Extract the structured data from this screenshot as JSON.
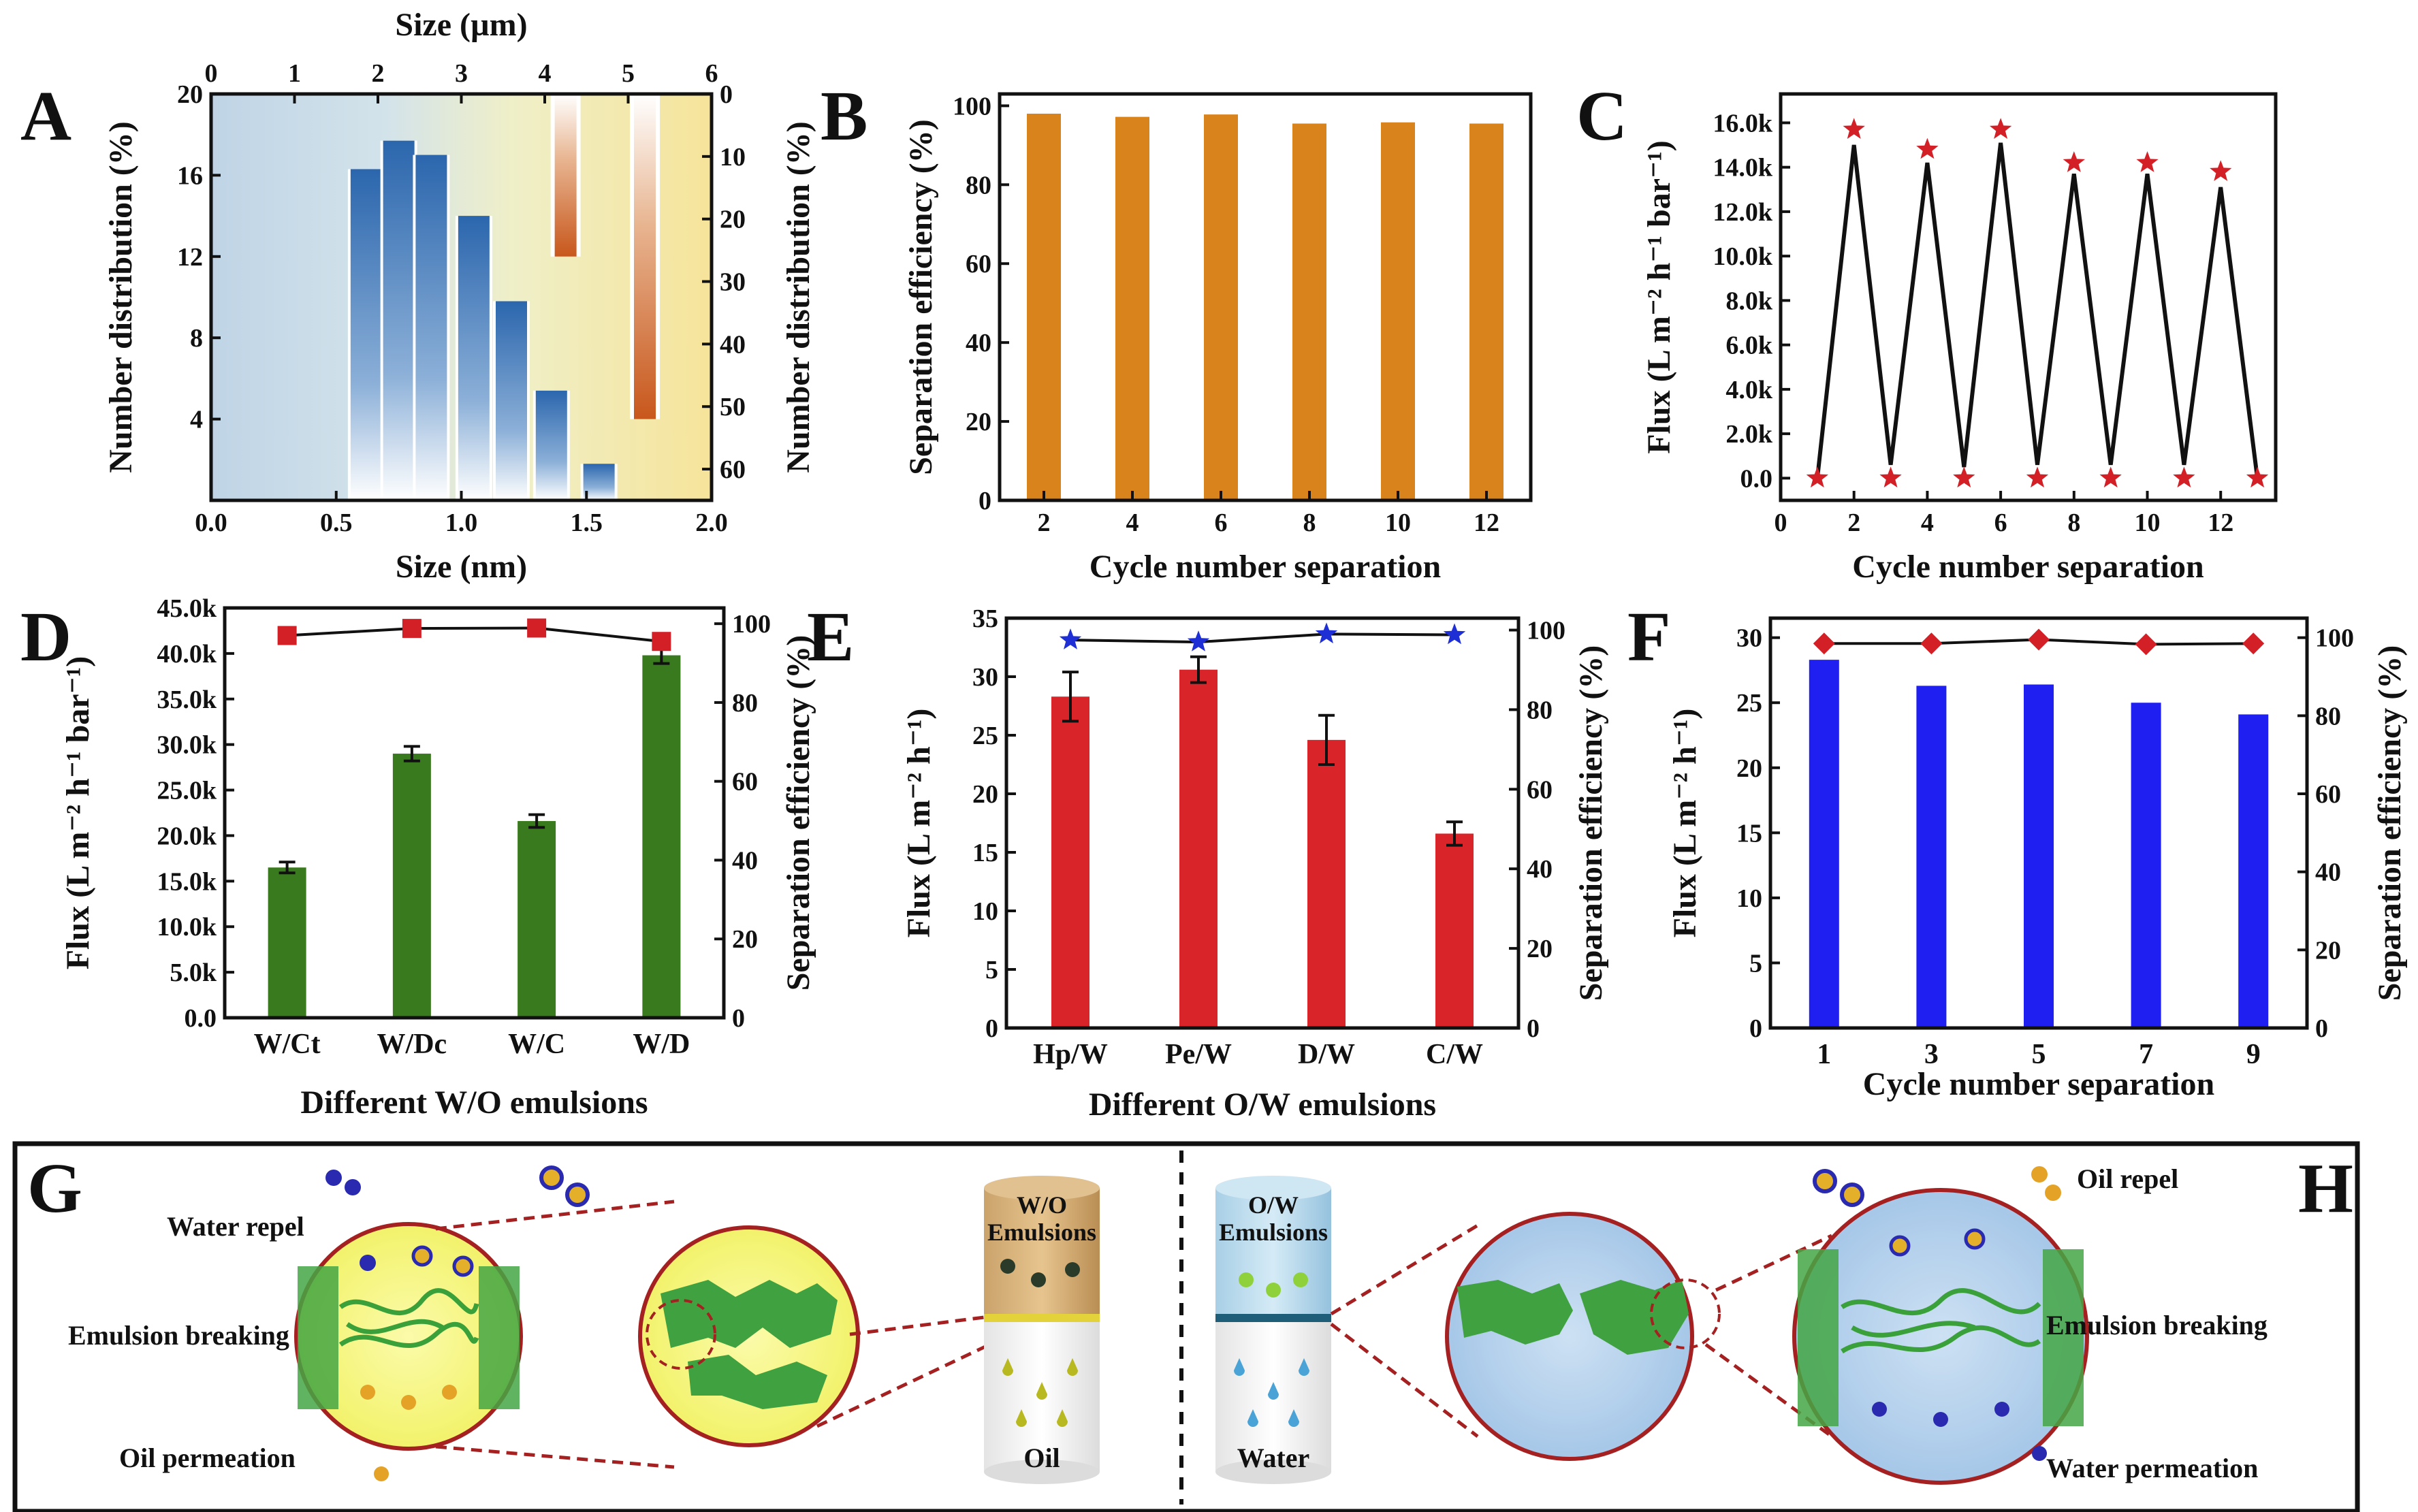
{
  "panel_letters": [
    "A",
    "B",
    "C",
    "D",
    "E",
    "F",
    "G",
    "H"
  ],
  "chart_data": [
    {
      "id": "A",
      "type": "bar",
      "xlabel": "Size (nm)",
      "x2label": "Size (µm)",
      "ylabel": "Number distribution (%)",
      "y2label": "Number distribution (%)",
      "xlim": [
        0,
        2
      ],
      "x2lim": [
        0,
        6
      ],
      "ylim": [
        0,
        20
      ],
      "y2lim": [
        0,
        65
      ],
      "y2_inverted": true,
      "xticks": [
        "0.0",
        "0.5",
        "1.0",
        "1.5",
        "2.0"
      ],
      "x2ticks": [
        "0",
        "1",
        "2",
        "3",
        "4",
        "5",
        "6"
      ],
      "yticks": [
        "4",
        "8",
        "12",
        "16",
        "20"
      ],
      "y2ticks": [
        "0",
        "10",
        "20",
        "30",
        "40",
        "50",
        "60"
      ],
      "series": [
        {
          "axis": "primary",
          "color": "#2f6db5",
          "x": [
            0.62,
            0.75,
            0.88,
            1.05,
            1.2,
            1.36,
            1.55
          ],
          "values": [
            16.3,
            17.7,
            17.0,
            14.0,
            9.8,
            5.4,
            1.8
          ]
        },
        {
          "axis": "secondary",
          "color": "#c8571c",
          "x": [
            4.25,
            5.2
          ],
          "values": [
            26,
            52
          ]
        }
      ]
    },
    {
      "id": "B",
      "type": "bar",
      "xlabel": "Cycle number separation",
      "ylabel": "Separation efficiency (%)",
      "ylim": [
        0,
        103
      ],
      "yticks": [
        "0",
        "20",
        "40",
        "60",
        "80",
        "100"
      ],
      "color": "#d9831d",
      "categories": [
        "2",
        "4",
        "6",
        "8",
        "10",
        "12"
      ],
      "values": [
        98.0,
        97.2,
        97.8,
        95.5,
        95.8,
        95.5
      ]
    },
    {
      "id": "C",
      "type": "line",
      "xlabel": "Cycle number separation",
      "ylabel": "Flux (L m⁻² h⁻¹ bar⁻¹)",
      "xlim": [
        0,
        13.5
      ],
      "ylim": [
        -1000,
        17300
      ],
      "xticks": [
        "0",
        "2",
        "4",
        "6",
        "8",
        "10",
        "12"
      ],
      "yticks": [
        "0.0",
        "2.0k",
        "4.0k",
        "6.0k",
        "8.0k",
        "10.0k",
        "12.0k",
        "14.0k",
        "16.0k"
      ],
      "marker_color": "#d32027",
      "x": [
        1,
        2,
        3,
        4,
        5,
        6,
        7,
        8,
        9,
        10,
        11,
        12,
        13
      ],
      "values": [
        0,
        15000,
        600,
        14200,
        500,
        15100,
        600,
        13700,
        600,
        13700,
        600,
        13100,
        0
      ],
      "star_values": [
        0,
        15700,
        0,
        14800,
        0,
        15700,
        0,
        14200,
        0,
        14200,
        0,
        13800,
        0
      ]
    },
    {
      "id": "D",
      "type": "bar",
      "xlabel": "Different W/O emulsions",
      "ylabel": "Flux (L m⁻² h⁻¹ bar⁻¹)",
      "y2label": "Separation efficiency (%)",
      "ylim": [
        0,
        45000
      ],
      "y2lim": [
        0,
        104
      ],
      "yticks": [
        "0.0",
        "5.0k",
        "10.0k",
        "15.0k",
        "20.0k",
        "25.0k",
        "30.0k",
        "35.0k",
        "40.0k",
        "45.0k"
      ],
      "y2ticks": [
        "0",
        "20",
        "40",
        "60",
        "80",
        "100"
      ],
      "categories": [
        "W/Ct",
        "W/Dc",
        "W/C",
        "W/D"
      ],
      "bar_color": "#3a7a1e",
      "line_color": "#d32027",
      "values": [
        16500,
        29000,
        21600,
        39800
      ],
      "errors": [
        600,
        800,
        700,
        900
      ],
      "efficiency": [
        97.0,
        98.8,
        98.9,
        95.5
      ]
    },
    {
      "id": "E",
      "type": "bar",
      "xlabel": "Different O/W emulsions",
      "ylabel": "Flux (L m⁻² h⁻¹)",
      "y2label": "Separation efficiency (%)",
      "ylim": [
        0,
        35
      ],
      "y2lim": [
        0,
        103
      ],
      "yticks": [
        "0",
        "5",
        "10",
        "15",
        "20",
        "25",
        "30",
        "35"
      ],
      "y2ticks": [
        "0",
        "20",
        "40",
        "60",
        "80",
        "100"
      ],
      "categories": [
        "Hp/W",
        "Pe/W",
        "D/W",
        "C/W"
      ],
      "bar_color": "#d9252a",
      "marker_color": "#1f2fd6",
      "values": [
        28.3,
        30.6,
        24.6,
        16.6
      ],
      "errors": [
        2.1,
        1.1,
        2.1,
        1.0
      ],
      "efficiency": [
        97.5,
        97.0,
        99.0,
        98.8
      ]
    },
    {
      "id": "F",
      "type": "bar",
      "xlabel": "Cycle number separation",
      "ylabel": "Flux (L m⁻² h⁻¹)",
      "y2label": "Separation efficiency (%)",
      "ylim": [
        0,
        31.5
      ],
      "y2lim": [
        0,
        105
      ],
      "yticks": [
        "0",
        "5",
        "10",
        "15",
        "20",
        "25",
        "30"
      ],
      "y2ticks": [
        "0",
        "20",
        "40",
        "60",
        "80",
        "100"
      ],
      "categories": [
        "1",
        "3",
        "5",
        "7",
        "9"
      ],
      "bar_color": "#1f1ff2",
      "marker_color": "#d32027",
      "values": [
        28.3,
        26.3,
        26.4,
        25.0,
        24.1
      ],
      "efficiency": [
        98.5,
        98.5,
        99.5,
        98.3,
        98.5
      ]
    }
  ],
  "schematic": {
    "G": {
      "labels": [
        "Water repel",
        "Emulsion breaking",
        "Oil permeation"
      ],
      "cylinder_top": "W/O\nEmulsions",
      "cylinder_bottom": "Oil"
    },
    "H": {
      "labels": [
        "Oil repel",
        "Emulsion breaking",
        "Water permeation"
      ],
      "cylinder_top": "O/W\nEmulsions",
      "cylinder_bottom": "Water"
    }
  }
}
